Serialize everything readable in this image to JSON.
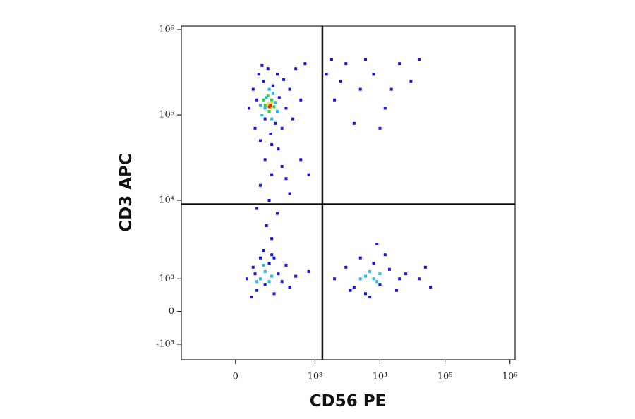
{
  "chart_data": {
    "type": "scatter",
    "xlabel": "CD56 PE",
    "ylabel": "CD3 APC",
    "xscale": "asinh",
    "yscale": "asinh",
    "xlim": [
      -400,
      1200000
    ],
    "ylim": [
      -1700,
      1100000
    ],
    "xticks": [
      0,
      {
        "value": 1000,
        "label": "10³"
      },
      {
        "value": 10000,
        "label": "10⁴"
      },
      {
        "value": 100000,
        "label": "10⁵"
      },
      {
        "value": 1000000,
        "label": "10⁶"
      }
    ],
    "yticks": [
      {
        "value": -1000,
        "label": "-10³"
      },
      0,
      {
        "value": 1000,
        "label": "10³"
      },
      {
        "value": 10000,
        "label": "10⁴"
      },
      {
        "value": 100000,
        "label": "10⁵"
      },
      {
        "value": 1000000,
        "label": "10⁶"
      }
    ],
    "gates": {
      "x": 1300,
      "y": 9000
    },
    "series": [
      {
        "color": "#1414e6",
        "x": [
          60,
          80,
          90,
          110,
          120,
          140,
          150,
          170,
          190,
          210,
          230,
          250,
          270,
          300,
          320,
          350,
          400,
          450,
          500,
          600,
          700,
          100,
          200,
          260,
          130,
          1500,
          2000,
          3000,
          5000,
          8000,
          12000,
          20000,
          30000,
          1800,
          4000,
          6000,
          15000,
          2500,
          10000,
          40000,
          150,
          200,
          120,
          180,
          250,
          160,
          200,
          140,
          220,
          300,
          350,
          100,
          400,
          600,
          800,
          50,
          80,
          100,
          120,
          150,
          180,
          220,
          260,
          300,
          350,
          70,
          200,
          400,
          500,
          800,
          90,
          2000,
          3000,
          4000,
          5000,
          6000,
          8000,
          10000,
          14000,
          18000,
          25000,
          40000,
          60000,
          3500,
          12000,
          9000,
          7000,
          50000,
          20000
        ],
        "values": [
          120000,
          200000,
          70000,
          300000,
          50000,
          250000,
          90000,
          350000,
          60000,
          220000,
          80000,
          300000,
          160000,
          70000,
          260000,
          120000,
          200000,
          90000,
          350000,
          150000,
          400000,
          150000,
          45000,
          40000,
          380000,
          300000,
          150000,
          400000,
          200000,
          300000,
          120000,
          400000,
          250000,
          450000,
          80000,
          450000,
          200000,
          250000,
          70000,
          450000,
          30000,
          20000,
          15000,
          10000,
          7000,
          5000,
          3500,
          2500,
          2000,
          25000,
          18000,
          8000,
          12000,
          30000,
          20000,
          1000,
          1500,
          600,
          2000,
          800,
          1700,
          500,
          1200,
          900,
          1600,
          400,
          2200,
          700,
          1100,
          1300,
          1200,
          1000,
          1500,
          700,
          2000,
          500,
          1700,
          800,
          1400,
          600,
          1200,
          1000,
          700,
          600,
          2200,
          3000,
          400,
          1500,
          1000
        ]
      },
      {
        "color": "#20b8e8",
        "x": [
          130,
          160,
          200,
          230,
          180,
          150,
          210,
          250,
          120,
          120,
          150,
          180,
          140,
          200,
          100,
          6000,
          8000,
          7000,
          10000,
          9000,
          5000
        ],
        "values": [
          100000,
          160000,
          90000,
          140000,
          200000,
          120000,
          180000,
          110000,
          130000,
          1000,
          1300,
          900,
          1600,
          1100,
          900,
          1100,
          1000,
          1300,
          1200,
          900,
          1000
        ]
      },
      {
        "color": "#2ecc40",
        "x": [
          150,
          180,
          200,
          170,
          220,
          140
        ],
        "values": [
          130000,
          110000,
          150000,
          170000,
          125000,
          150000
        ]
      },
      {
        "color": "#e6e01e",
        "x": [
          170,
          190,
          200
        ],
        "values": [
          135000,
          120000,
          140000
        ]
      },
      {
        "color": "#e01e1e",
        "x": [
          180,
          190
        ],
        "values": [
          125000,
          130000
        ]
      }
    ]
  }
}
